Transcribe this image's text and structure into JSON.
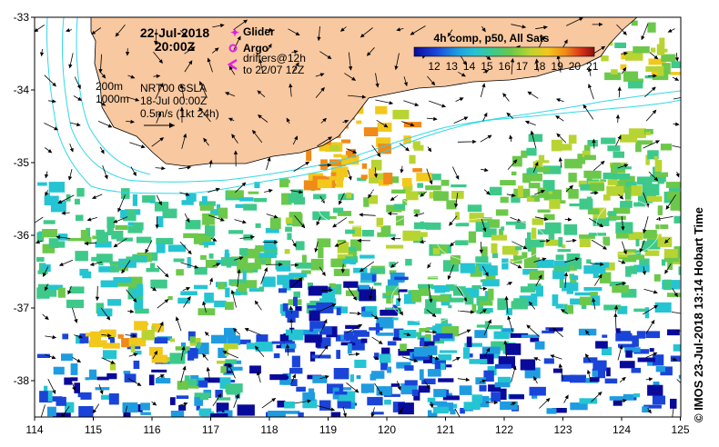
{
  "map": {
    "date": "22-Jul-2018",
    "time": "20:00Z",
    "legend": {
      "glider": "Glider",
      "argo": "Argo",
      "drifters_line1": "drifters@12h",
      "drifters_line2": "to 22/07 12Z"
    },
    "contours": {
      "c200": "200m",
      "c1000": "1000m"
    },
    "altimetry": {
      "product": "NRT00 GSLA",
      "date": "18-Jul 00:00Z",
      "scale": "0.5m/s (1kt 24h)"
    },
    "colorbar": {
      "title": "4h comp, p50, All Sats",
      "ticks": [
        "12",
        "13",
        "14",
        "15",
        "16",
        "17",
        "18",
        "19",
        "20",
        "21"
      ],
      "colors": [
        "#0a0a9a",
        "#1a44d8",
        "#1f9ce0",
        "#25c4d2",
        "#3ec98a",
        "#6cc84a",
        "#b8d432",
        "#f2c81c",
        "#f08a18",
        "#d8301a",
        "#8a1010"
      ]
    },
    "x_ticks": [
      "114",
      "115",
      "116",
      "117",
      "118",
      "119",
      "120",
      "121",
      "122",
      "123",
      "124",
      "125"
    ],
    "y_ticks": [
      "-33",
      "-34",
      "-35",
      "-36",
      "-37",
      "-38"
    ],
    "credit": "© IMOS 23-Jul-2018 13:14 Hobart Time",
    "colors": {
      "land": "#f8c8a0",
      "contour": "#30d8e8",
      "marker": "#e020e0"
    }
  }
}
